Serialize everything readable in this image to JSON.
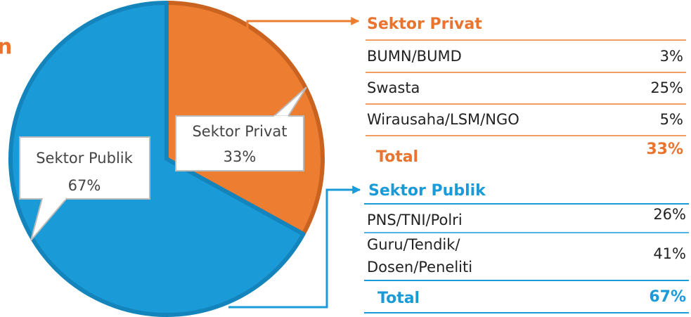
{
  "fragment": "n",
  "chart_data": {
    "type": "pie",
    "categories": [
      "Sektor Privat",
      "Sektor Publik"
    ],
    "values": [
      33,
      67
    ],
    "value_labels": [
      "33%",
      "67%"
    ],
    "colors": [
      "#ED7D31",
      "#1A9BD7"
    ],
    "edge_colors": [
      "#C9631F",
      "#1485BC"
    ]
  },
  "tables": [
    {
      "title": "Sektor Privat",
      "rows": [
        [
          "BUMN/BUMD",
          "3%"
        ],
        [
          "Swasta",
          "25%"
        ],
        [
          "Wirausaha/LSM/NGO",
          "5%"
        ]
      ],
      "total": [
        "Total",
        "33%"
      ]
    },
    {
      "title": "Sektor Publik",
      "rows": [
        [
          "PNS/TNI/Polri",
          "26%"
        ],
        [
          "Guru/Tendik/",
          "Dosen/Peneliti",
          "41%"
        ]
      ],
      "total": [
        "Total",
        "67%"
      ]
    }
  ]
}
